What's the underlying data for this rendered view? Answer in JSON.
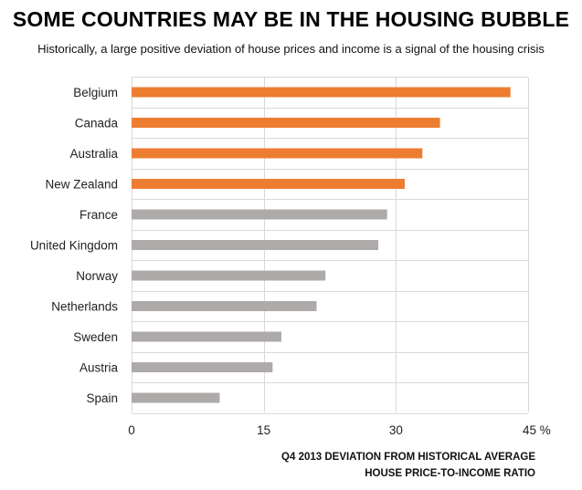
{
  "title": "SOME COUNTRIES MAY BE IN THE HOUSING BUBBLE",
  "subtitle": "Historically, a large positive deviation of house prices and income is a signal of the housing crisis",
  "xlabel_lines": [
    "Q4 2013 DEVIATION FROM HISTORICAL AVERAGE",
    "HOUSE PRICE-TO-INCOME RATIO"
  ],
  "colors": {
    "highlight": "#ed7d31",
    "default": "#aeaaaa",
    "grid": "#d9d9d9"
  },
  "chart_data": {
    "type": "bar",
    "orientation": "horizontal",
    "categories": [
      "Belgium",
      "Canada",
      "Australia",
      "New Zealand",
      "France",
      "United Kingdom",
      "Norway",
      "Netherlands",
      "Sweden",
      "Austria",
      "Spain"
    ],
    "values": [
      43,
      35,
      33,
      31,
      29,
      28,
      22,
      21,
      17,
      16,
      10
    ],
    "highlighted": [
      true,
      true,
      true,
      true,
      false,
      false,
      false,
      false,
      false,
      false,
      false
    ],
    "xlim": [
      0,
      45
    ],
    "xticks": [
      0,
      15,
      30,
      45
    ],
    "xtick_labels": [
      "0",
      "15",
      "30",
      "45 %"
    ],
    "grid": true,
    "legend": "none"
  }
}
